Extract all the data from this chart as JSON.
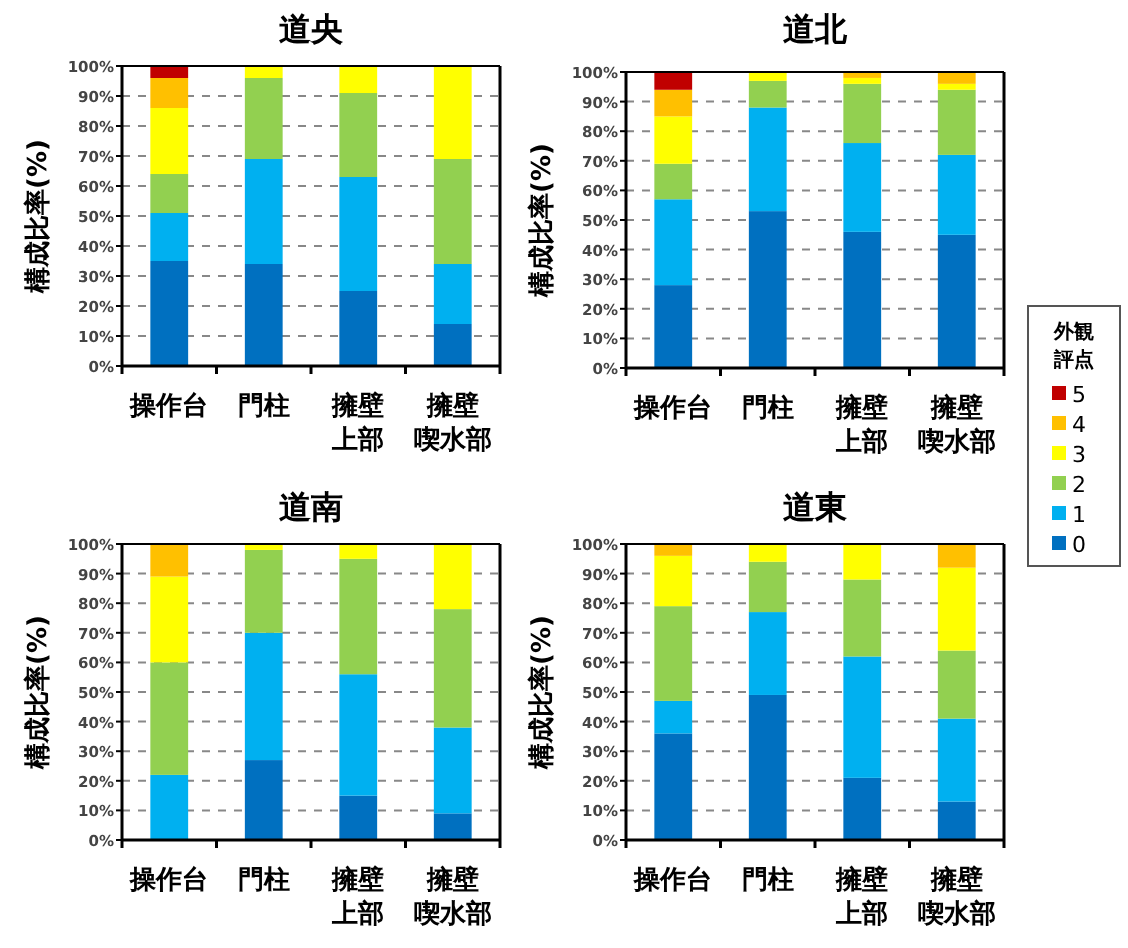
{
  "chart_data": [
    {
      "type": "bar",
      "stacked": true,
      "title": "道央",
      "ylabel": "構成比率(%)",
      "categories": [
        "操作台",
        "門柱",
        "擁壁上部",
        "擁壁喫水部"
      ],
      "ylim": [
        0,
        100
      ],
      "yticks": [
        {
          "value": 0,
          "label": "0%"
        },
        {
          "value": 10,
          "label": "10%"
        },
        {
          "value": 20,
          "label": "20%"
        },
        {
          "value": 30,
          "label": "30%"
        },
        {
          "value": 40,
          "label": "40%"
        },
        {
          "value": 50,
          "label": "50%"
        },
        {
          "value": 60,
          "label": "60%"
        },
        {
          "value": 70,
          "label": "70%"
        },
        {
          "value": 80,
          "label": "80%"
        },
        {
          "value": 90,
          "label": "90%"
        },
        {
          "value": 100,
          "label": "100%"
        }
      ],
      "grid": "y",
      "line_style": "dashed",
      "series": [
        {
          "color": "#0070c0",
          "values": [
            35,
            34,
            25,
            14
          ]
        },
        {
          "color": "#00b0f0",
          "values": [
            16,
            35,
            38,
            20
          ]
        },
        {
          "color": "#92d050",
          "values": [
            13,
            27,
            28,
            35
          ]
        },
        {
          "color": "#ffff00",
          "values": [
            22,
            4,
            9,
            31
          ]
        },
        {
          "color": "#ffc000",
          "values": [
            10,
            0,
            0,
            0
          ]
        },
        {
          "color": "#c00000",
          "values": [
            4,
            0,
            0,
            0
          ]
        }
      ]
    },
    {
      "type": "bar",
      "stacked": true,
      "title": "道北",
      "ylabel": "構成比率(%)",
      "legend": "right",
      "legend_title": "外観評点",
      "categories": [
        "操作台",
        "門柱",
        "擁壁上部",
        "擁壁喫水部"
      ],
      "ylim": [
        0,
        100
      ],
      "yticks": [
        {
          "value": 0,
          "label": "0%"
        },
        {
          "value": 10,
          "label": "10%"
        },
        {
          "value": 20,
          "label": "20%"
        },
        {
          "value": 30,
          "label": "30%"
        },
        {
          "value": 40,
          "label": "40%"
        },
        {
          "value": 50,
          "label": "50%"
        },
        {
          "value": 60,
          "label": "60%"
        },
        {
          "value": 70,
          "label": "70%"
        },
        {
          "value": 80,
          "label": "80%"
        },
        {
          "value": 90,
          "label": "90%"
        },
        {
          "value": 100,
          "label": "100%"
        }
      ],
      "grid": "y",
      "line_style": "dashed",
      "series": [
        {
          "name": "0",
          "color": "#0070c0",
          "values": [
            28,
            53,
            46,
            45
          ]
        },
        {
          "name": "1",
          "color": "#00b0f0",
          "values": [
            29,
            35,
            30,
            27
          ]
        },
        {
          "name": "2",
          "color": "#92d050",
          "values": [
            12,
            9,
            20,
            22
          ]
        },
        {
          "name": "3",
          "color": "#ffff00",
          "values": [
            16,
            3,
            2,
            2
          ]
        },
        {
          "name": "4",
          "color": "#ffc000",
          "values": [
            9,
            0,
            2,
            4
          ]
        },
        {
          "name": "5",
          "color": "#c00000",
          "values": [
            6,
            0,
            0,
            0
          ]
        }
      ]
    },
    {
      "type": "bar",
      "stacked": true,
      "title": "道南",
      "ylabel": "構成比率(%)",
      "categories": [
        "操作台",
        "門柱",
        "擁壁上部",
        "擁壁喫水部"
      ],
      "ylim": [
        0,
        100
      ],
      "yticks": [
        {
          "value": 0,
          "label": "0%"
        },
        {
          "value": 10,
          "label": "10%"
        },
        {
          "value": 20,
          "label": "20%"
        },
        {
          "value": 30,
          "label": "30%"
        },
        {
          "value": 40,
          "label": "40%"
        },
        {
          "value": 50,
          "label": "50%"
        },
        {
          "value": 60,
          "label": "60%"
        },
        {
          "value": 70,
          "label": "70%"
        },
        {
          "value": 80,
          "label": "80%"
        },
        {
          "value": 90,
          "label": "90%"
        },
        {
          "value": 100,
          "label": "100%"
        }
      ],
      "grid": "y",
      "line_style": "dashed",
      "series": [
        {
          "color": "#0070c0",
          "values": [
            0,
            27,
            15,
            9
          ]
        },
        {
          "color": "#00b0f0",
          "values": [
            22,
            43,
            41,
            29
          ]
        },
        {
          "color": "#92d050",
          "values": [
            38,
            28,
            39,
            40
          ]
        },
        {
          "color": "#ffff00",
          "values": [
            29,
            2,
            5,
            22
          ]
        },
        {
          "color": "#ffc000",
          "values": [
            11,
            0,
            0,
            0
          ]
        },
        {
          "color": "#c00000",
          "values": [
            0,
            0,
            0,
            0
          ]
        }
      ]
    },
    {
      "type": "bar",
      "stacked": true,
      "title": "道東",
      "ylabel": "構成比率(%)",
      "categories": [
        "操作台",
        "門柱",
        "擁壁上部",
        "擁壁喫水部"
      ],
      "ylim": [
        0,
        100
      ],
      "yticks": [
        {
          "value": 0,
          "label": "0%"
        },
        {
          "value": 10,
          "label": "10%"
        },
        {
          "value": 20,
          "label": "20%"
        },
        {
          "value": 30,
          "label": "30%"
        },
        {
          "value": 40,
          "label": "40%"
        },
        {
          "value": 50,
          "label": "50%"
        },
        {
          "value": 60,
          "label": "60%"
        },
        {
          "value": 70,
          "label": "70%"
        },
        {
          "value": 80,
          "label": "80%"
        },
        {
          "value": 90,
          "label": "90%"
        },
        {
          "value": 100,
          "label": "100%"
        }
      ],
      "grid": "y",
      "line_style": "dashed",
      "series": [
        {
          "color": "#0070c0",
          "values": [
            36,
            49,
            21,
            13
          ]
        },
        {
          "color": "#00b0f0",
          "values": [
            11,
            28,
            41,
            28
          ]
        },
        {
          "color": "#92d050",
          "values": [
            32,
            17,
            26,
            23
          ]
        },
        {
          "color": "#ffff00",
          "values": [
            17,
            6,
            12,
            28
          ]
        },
        {
          "color": "#ffc000",
          "values": [
            4,
            0,
            0,
            8
          ]
        },
        {
          "color": "#c00000",
          "values": [
            0,
            0,
            0,
            0
          ]
        }
      ]
    }
  ]
}
